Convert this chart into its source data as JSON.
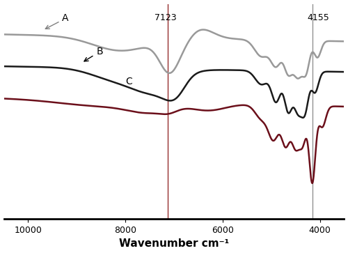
{
  "xlabel": "Wavenumber cm⁻¹",
  "xlim": [
    10500,
    3500
  ],
  "xticks": [
    10000,
    8000,
    6000,
    4000
  ],
  "marker_7123": 7123,
  "marker_4155": 4155,
  "color_A": "#999999",
  "color_B": "#1a1a1a",
  "color_C": "#6b0f1a",
  "label_A": "A",
  "label_B": "B",
  "label_C": "C",
  "bg_color": "#ffffff",
  "linewidth": 1.8
}
